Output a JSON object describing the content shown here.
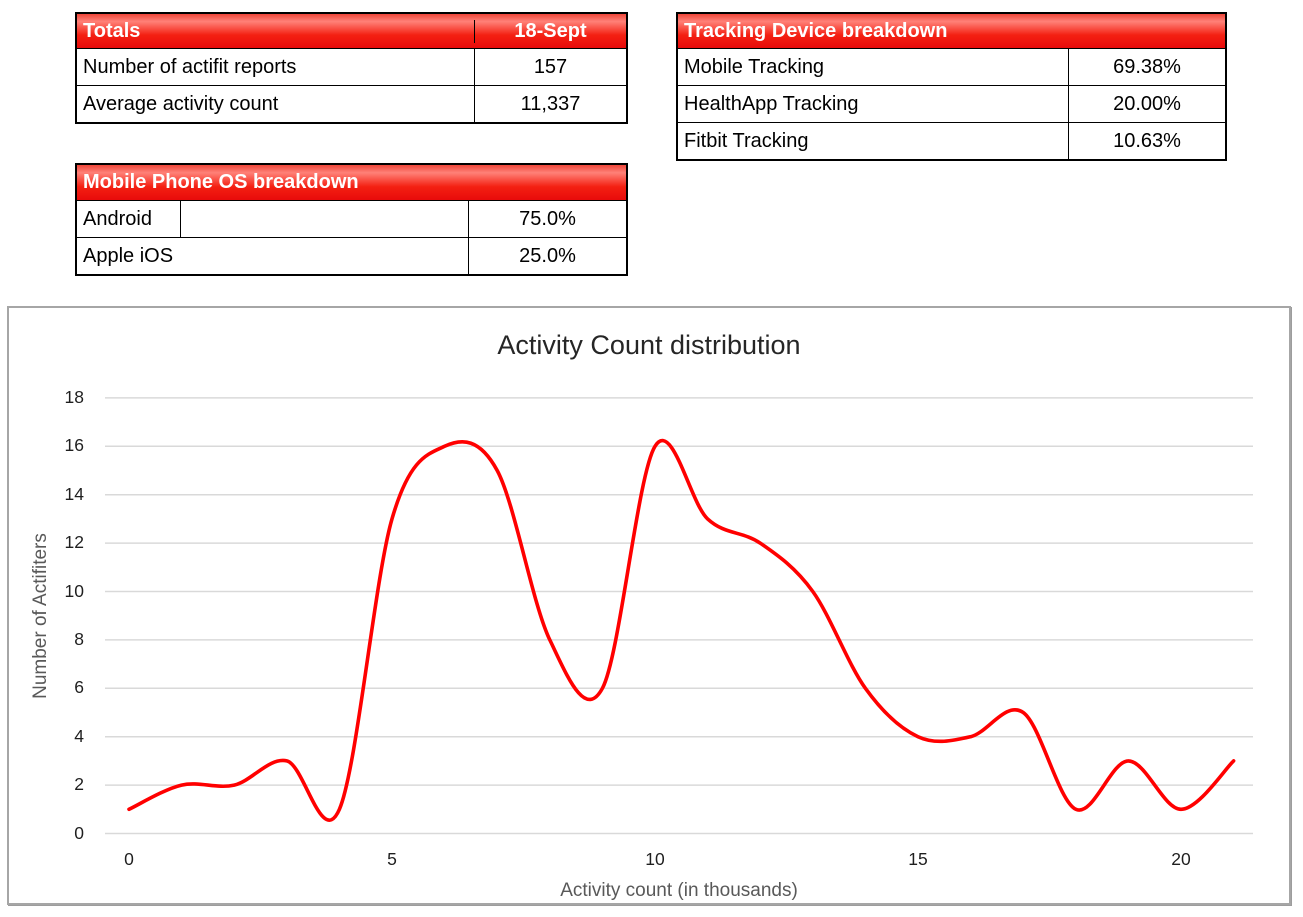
{
  "tables": {
    "totals": {
      "header": {
        "label": "Totals",
        "value": "18-Sept"
      },
      "rows": [
        {
          "label": "Number of actifit reports",
          "value": "157"
        },
        {
          "label": "Average activity count",
          "value": "11,337"
        }
      ]
    },
    "tracking": {
      "header": {
        "label": "Tracking Device breakdown"
      },
      "rows": [
        {
          "label": "Mobile Tracking",
          "value": "69.38%"
        },
        {
          "label": "HealthApp Tracking",
          "value": "20.00%"
        },
        {
          "label": "Fitbit Tracking",
          "value": "10.63%"
        }
      ]
    },
    "mobile_os": {
      "header": {
        "label": "Mobile Phone OS breakdown"
      },
      "rows": [
        {
          "label": "Android",
          "value": "75.0%"
        },
        {
          "label": "Apple iOS",
          "value": "25.0%"
        }
      ]
    }
  },
  "chart_data": {
    "type": "line",
    "title": "Activity Count distribution",
    "xlabel": "Activity count (in thousands)",
    "ylabel": "Number of Actifiters",
    "x": [
      0,
      1,
      2,
      3,
      4,
      5,
      6,
      7,
      8,
      9,
      10,
      11,
      12,
      13,
      14,
      15,
      16,
      17,
      18,
      19,
      20,
      21
    ],
    "series": [
      {
        "name": "Number of Actifiters",
        "values": [
          1,
          2,
          2,
          3,
          1,
          13,
          16,
          15,
          8,
          6,
          16,
          13,
          12,
          10,
          6,
          4,
          4,
          5,
          1,
          3,
          1,
          3
        ]
      }
    ],
    "xticks": [
      0,
      5,
      10,
      15,
      20
    ],
    "yticks": [
      0,
      2,
      4,
      6,
      8,
      10,
      12,
      14,
      16,
      18
    ],
    "xlim": [
      0,
      21
    ],
    "ylim": [
      0,
      18
    ],
    "grid": "horizontal",
    "smooth": true,
    "legend": "none",
    "colors": {
      "line": "#ff0000",
      "grid": "#d9d9d9",
      "title": "#262626",
      "axis_titles": "#595959",
      "tick_labels": "#1f1f1f",
      "table_header_red": "#e80b0b",
      "chart_border": "#a6a6a6"
    }
  }
}
